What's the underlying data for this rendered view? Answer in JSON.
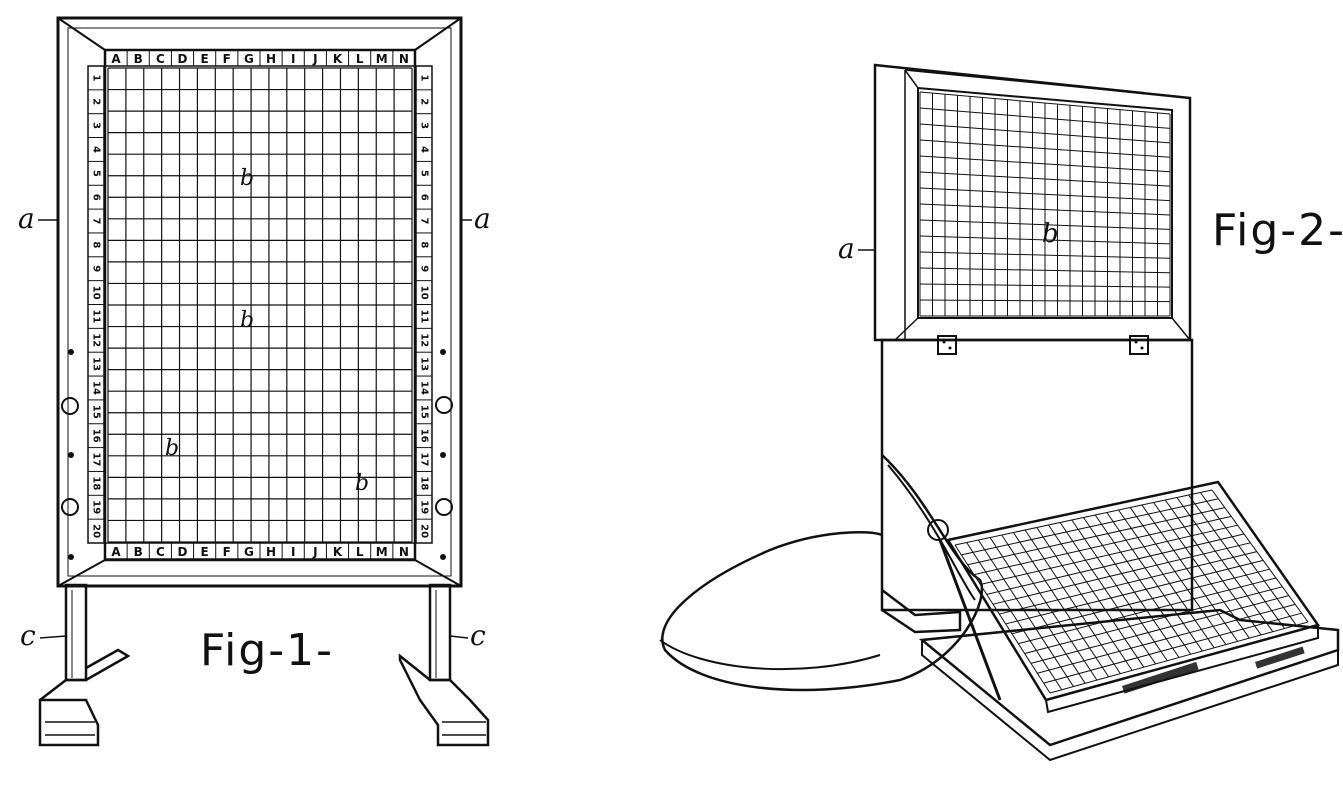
{
  "figures": {
    "fig1": {
      "caption": "Fig-1-",
      "columns": [
        "A",
        "B",
        "C",
        "D",
        "E",
        "F",
        "G",
        "H",
        "I",
        "J",
        "K",
        "L",
        "M",
        "N"
      ],
      "rows": [
        "1",
        "2",
        "3",
        "4",
        "5",
        "6",
        "7",
        "8",
        "9",
        "10",
        "11",
        "12",
        "13",
        "14",
        "15",
        "16",
        "17",
        "18",
        "19",
        "20"
      ],
      "labels": {
        "frame_left": "a",
        "frame_right": "a",
        "leg_left": "c",
        "leg_right": "c",
        "board_b1": "b",
        "board_b2": "b",
        "board_b3": "b",
        "board_b4": "b"
      }
    },
    "fig2": {
      "caption": "Fig-2-",
      "labels": {
        "frame_a": "a",
        "board_b": "b"
      }
    }
  },
  "colors": {
    "ink": "#111111",
    "paper": "#ffffff"
  }
}
